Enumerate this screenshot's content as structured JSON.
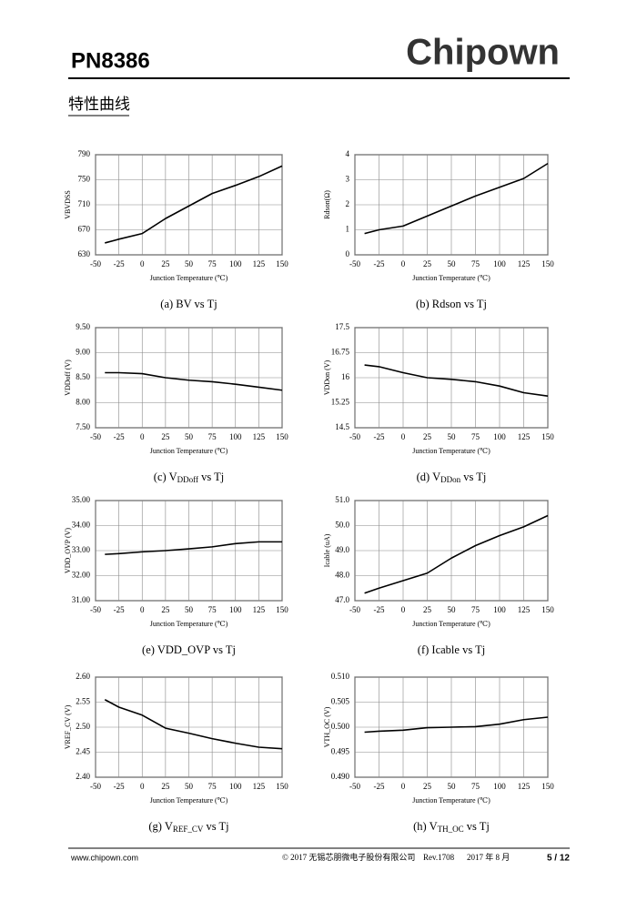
{
  "header": {
    "part": "PN8386",
    "brand": "Chipown",
    "section": "特性曲线"
  },
  "footer": {
    "website": "www.chipown.com",
    "copyright": "© 2017 无锡芯朋微电子股份有限公司",
    "revision": "Rev.1708",
    "date": "2017 年 8 月",
    "page": "5 / 12"
  },
  "chart_data": [
    {
      "type": "line",
      "title": "(a) BV vs Tj",
      "x_label": "Junction Temperature (℃)",
      "y_label": "VBVDSS",
      "x": [
        -40,
        -25,
        0,
        25,
        50,
        75,
        100,
        125,
        150
      ],
      "values": [
        649,
        655,
        664,
        688,
        708,
        728,
        741,
        755,
        772
      ],
      "color": "#000000",
      "xlim": [
        -50,
        150
      ],
      "xticks": [
        -50,
        -25,
        0,
        25,
        50,
        75,
        100,
        125,
        150
      ],
      "ylim": [
        630,
        790
      ],
      "yticks": [
        630,
        670,
        710,
        750,
        790
      ],
      "grid": true
    },
    {
      "type": "line",
      "title": "(b) Rdson vs Tj",
      "x_label": "Junction Temperature (℃)",
      "y_label": "Rdson(Ω)",
      "x": [
        -40,
        -25,
        0,
        25,
        50,
        75,
        100,
        125,
        150
      ],
      "values": [
        0.85,
        1.0,
        1.15,
        1.55,
        1.95,
        2.35,
        2.7,
        3.05,
        3.65
      ],
      "color": "#000000",
      "xlim": [
        -50,
        150
      ],
      "xticks": [
        -50,
        -25,
        0,
        25,
        50,
        75,
        100,
        125,
        150
      ],
      "ylim": [
        0,
        4
      ],
      "yticks": [
        0,
        1,
        2,
        3,
        4
      ],
      "grid": true
    },
    {
      "type": "line",
      "title": [
        "(c) V",
        "DDoff",
        " vs Tj"
      ],
      "x_label": "Junction Temperature (℃)",
      "y_label": "VDDoff (V)",
      "x": [
        -40,
        -25,
        0,
        25,
        50,
        75,
        100,
        125,
        150
      ],
      "values": [
        8.6,
        8.6,
        8.58,
        8.5,
        8.45,
        8.42,
        8.37,
        8.31,
        8.25
      ],
      "color": "#000000",
      "xlim": [
        -50,
        150
      ],
      "xticks": [
        -50,
        -25,
        0,
        25,
        50,
        75,
        100,
        125,
        150
      ],
      "ylim": [
        7.5,
        9.5
      ],
      "yticks": [
        {
          "value": 7.5,
          "label": "7.50"
        },
        {
          "value": 8,
          "label": "8.00"
        },
        {
          "value": 8.5,
          "label": "8.50"
        },
        {
          "value": 9,
          "label": "9.00"
        },
        {
          "value": 9.5,
          "label": "9.50"
        }
      ],
      "grid": true
    },
    {
      "type": "line",
      "title": [
        "(d) V",
        "DDon",
        " vs Tj"
      ],
      "x_label": "Junction Temperature (℃)",
      "y_label": "VDDon (V)",
      "x": [
        -40,
        -25,
        0,
        25,
        50,
        75,
        100,
        125,
        150
      ],
      "values": [
        16.38,
        16.33,
        16.15,
        16.0,
        15.95,
        15.88,
        15.75,
        15.55,
        15.45
      ],
      "color": "#000000",
      "xlim": [
        -50,
        150
      ],
      "xticks": [
        -50,
        -25,
        0,
        25,
        50,
        75,
        100,
        125,
        150
      ],
      "ylim": [
        14.5,
        17.5
      ],
      "yticks": [
        14.5,
        15.25,
        16,
        16.75,
        17.5
      ],
      "grid": true
    },
    {
      "type": "line",
      "title": "(e) VDD_OVP vs Tj",
      "x_label": "Junction Temperature (℃)",
      "y_label": "VDD_OVP (V)",
      "x": [
        -40,
        -25,
        0,
        25,
        50,
        75,
        100,
        125,
        150
      ],
      "values": [
        32.85,
        32.88,
        32.95,
        33.0,
        33.07,
        33.15,
        33.28,
        33.35,
        33.35
      ],
      "color": "#000000",
      "xlim": [
        -50,
        150
      ],
      "xticks": [
        -50,
        -25,
        0,
        25,
        50,
        75,
        100,
        125,
        150
      ],
      "ylim": [
        31,
        35
      ],
      "yticks": [
        {
          "value": 31,
          "label": "31.00"
        },
        {
          "value": 32,
          "label": "32.00"
        },
        {
          "value": 33,
          "label": "33.00"
        },
        {
          "value": 34,
          "label": "34.00"
        },
        {
          "value": 35,
          "label": "35.00"
        }
      ],
      "grid": true
    },
    {
      "type": "line",
      "title": "(f) Icable vs Tj",
      "x_label": "Junction Temperature (℃)",
      "y_label": "Icable (uA)",
      "x": [
        -40,
        -25,
        0,
        25,
        50,
        75,
        100,
        125,
        150
      ],
      "values": [
        47.3,
        47.5,
        47.8,
        48.1,
        48.7,
        49.2,
        49.6,
        49.95,
        50.4
      ],
      "color": "#000000",
      "xlim": [
        -50,
        150
      ],
      "xticks": [
        -50,
        -25,
        0,
        25,
        50,
        75,
        100,
        125,
        150
      ],
      "ylim": [
        47,
        51
      ],
      "yticks": [
        {
          "value": 47,
          "label": "47.0"
        },
        {
          "value": 48,
          "label": "48.0"
        },
        {
          "value": 49,
          "label": "49.0"
        },
        {
          "value": 50,
          "label": "50.0"
        },
        {
          "value": 51,
          "label": "51.0"
        }
      ],
      "grid": true
    },
    {
      "type": "line",
      "title": [
        "(g) V",
        "REF_CV",
        " vs Tj"
      ],
      "x_label": "Junction Temperature (℃)",
      "y_label": "VREF_CV (V)",
      "x": [
        -40,
        -25,
        0,
        25,
        50,
        75,
        100,
        125,
        150
      ],
      "values": [
        2.555,
        2.54,
        2.524,
        2.498,
        2.488,
        2.477,
        2.468,
        2.46,
        2.457
      ],
      "color": "#000000",
      "xlim": [
        -50,
        150
      ],
      "xticks": [
        -50,
        -25,
        0,
        25,
        50,
        75,
        100,
        125,
        150
      ],
      "ylim": [
        2.4,
        2.6
      ],
      "yticks": [
        {
          "value": 2.4,
          "label": "2.40"
        },
        {
          "value": 2.45,
          "label": "2.45"
        },
        {
          "value": 2.5,
          "label": "2.50"
        },
        {
          "value": 2.55,
          "label": "2.55"
        },
        {
          "value": 2.6,
          "label": "2.60"
        }
      ],
      "grid": true
    },
    {
      "type": "line",
      "title": [
        "(h) V",
        "TH_OC",
        " vs Tj"
      ],
      "x_label": "Junction Temperature (℃)",
      "y_label": "VTH_OC (V)",
      "x": [
        -40,
        -25,
        0,
        25,
        50,
        75,
        100,
        125,
        150
      ],
      "values": [
        0.499,
        0.4992,
        0.4994,
        0.4999,
        0.5,
        0.5001,
        0.5006,
        0.5015,
        0.502
      ],
      "color": "#000000",
      "xlim": [
        -50,
        150
      ],
      "xticks": [
        -50,
        -25,
        0,
        25,
        50,
        75,
        100,
        125,
        150
      ],
      "ylim": [
        0.49,
        0.51
      ],
      "yticks": [
        {
          "value": 0.49,
          "label": "0.490"
        },
        {
          "value": 0.495,
          "label": "0.495"
        },
        {
          "value": 0.5,
          "label": "0.500"
        },
        {
          "value": 0.505,
          "label": "0.505"
        },
        {
          "value": 0.51,
          "label": "0.510"
        }
      ],
      "grid": true
    }
  ]
}
